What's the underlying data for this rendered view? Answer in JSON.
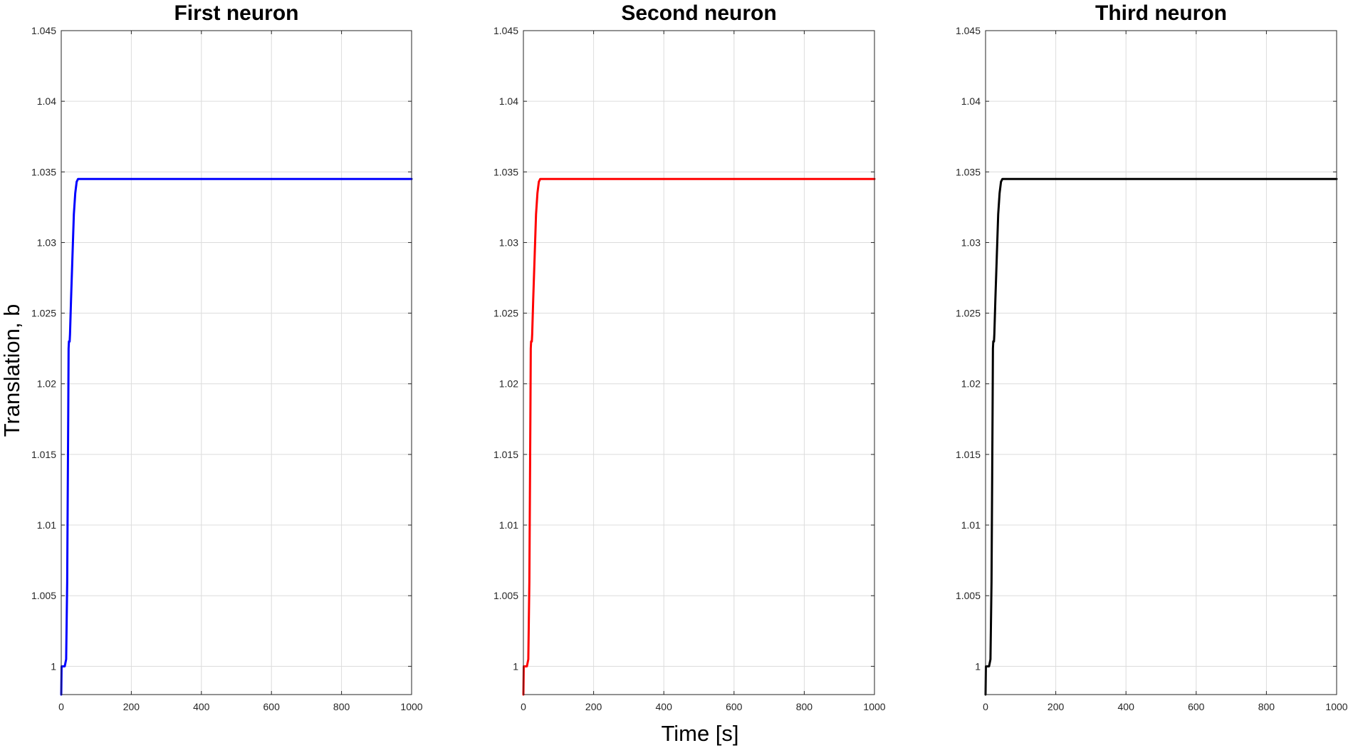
{
  "figure": {
    "ylabel": "Translation, b",
    "xlabel": "Time [s]"
  },
  "chart_data": [
    {
      "type": "line",
      "title": "First neuron",
      "xlim": [
        0,
        1000
      ],
      "ylim": [
        0.998,
        1.045
      ],
      "xticks": [
        0,
        200,
        400,
        600,
        800,
        1000
      ],
      "xtick_labels": [
        "0",
        "200",
        "400",
        "600",
        "800",
        "1000"
      ],
      "yticks": [
        1,
        1.005,
        1.01,
        1.015,
        1.02,
        1.025,
        1.03,
        1.035,
        1.04,
        1.045
      ],
      "ytick_labels": [
        "1",
        "1.005",
        "1.01",
        "1.015",
        "1.02",
        "1.025",
        "1.03",
        "1.035",
        "1.04",
        "1.045"
      ],
      "grid": true,
      "series": [
        {
          "color": "#0000ff",
          "x": [
            0,
            1,
            2,
            5,
            10,
            14,
            17,
            20,
            21,
            22,
            23,
            24,
            25,
            28,
            32,
            36,
            40,
            44,
            48,
            55,
            70,
            100,
            200,
            400,
            600,
            800,
            1000
          ],
          "y": [
            0.998,
            1.0,
            1.0,
            1.0,
            1.0,
            1.0005,
            1.006,
            1.018,
            1.0225,
            1.023,
            1.023,
            1.023,
            1.0235,
            1.026,
            1.029,
            1.032,
            1.0335,
            1.0343,
            1.0345,
            1.0345,
            1.0345,
            1.0345,
            1.0345,
            1.0345,
            1.0345,
            1.0345,
            1.0345
          ]
        }
      ]
    },
    {
      "type": "line",
      "title": "Second neuron",
      "xlim": [
        0,
        1000
      ],
      "ylim": [
        0.998,
        1.045
      ],
      "xticks": [
        0,
        200,
        400,
        600,
        800,
        1000
      ],
      "xtick_labels": [
        "0",
        "200",
        "400",
        "600",
        "800",
        "1000"
      ],
      "yticks": [
        1,
        1.005,
        1.01,
        1.015,
        1.02,
        1.025,
        1.03,
        1.035,
        1.04,
        1.045
      ],
      "ytick_labels": [
        "1",
        "1.005",
        "1.01",
        "1.015",
        "1.02",
        "1.025",
        "1.03",
        "1.035",
        "1.04",
        "1.045"
      ],
      "grid": true,
      "series": [
        {
          "color": "#ff0000",
          "x": [
            0,
            1,
            2,
            5,
            10,
            14,
            17,
            20,
            21,
            22,
            23,
            24,
            25,
            28,
            32,
            36,
            40,
            44,
            48,
            55,
            70,
            100,
            200,
            400,
            600,
            800,
            1000
          ],
          "y": [
            0.998,
            1.0,
            1.0,
            1.0,
            1.0,
            1.0005,
            1.006,
            1.018,
            1.0225,
            1.023,
            1.023,
            1.023,
            1.0235,
            1.026,
            1.029,
            1.032,
            1.0335,
            1.0343,
            1.0345,
            1.0345,
            1.0345,
            1.0345,
            1.0345,
            1.0345,
            1.0345,
            1.0345,
            1.0345
          ]
        }
      ]
    },
    {
      "type": "line",
      "title": "Third neuron",
      "xlim": [
        0,
        1000
      ],
      "ylim": [
        0.998,
        1.045
      ],
      "xticks": [
        0,
        200,
        400,
        600,
        800,
        1000
      ],
      "xtick_labels": [
        "0",
        "200",
        "400",
        "600",
        "800",
        "1000"
      ],
      "yticks": [
        1,
        1.005,
        1.01,
        1.015,
        1.02,
        1.025,
        1.03,
        1.035,
        1.04,
        1.045
      ],
      "ytick_labels": [
        "1",
        "1.005",
        "1.01",
        "1.015",
        "1.02",
        "1.025",
        "1.03",
        "1.035",
        "1.04",
        "1.045"
      ],
      "grid": true,
      "series": [
        {
          "color": "#000000",
          "x": [
            0,
            1,
            2,
            5,
            10,
            14,
            17,
            20,
            21,
            22,
            23,
            24,
            25,
            28,
            32,
            36,
            40,
            44,
            48,
            55,
            70,
            100,
            200,
            400,
            600,
            800,
            1000
          ],
          "y": [
            0.998,
            1.0,
            1.0,
            1.0,
            1.0,
            1.0005,
            1.006,
            1.018,
            1.0225,
            1.023,
            1.023,
            1.023,
            1.0235,
            1.026,
            1.029,
            1.032,
            1.0335,
            1.0343,
            1.0345,
            1.0345,
            1.0345,
            1.0345,
            1.0345,
            1.0345,
            1.0345,
            1.0345,
            1.0345
          ]
        }
      ]
    }
  ]
}
